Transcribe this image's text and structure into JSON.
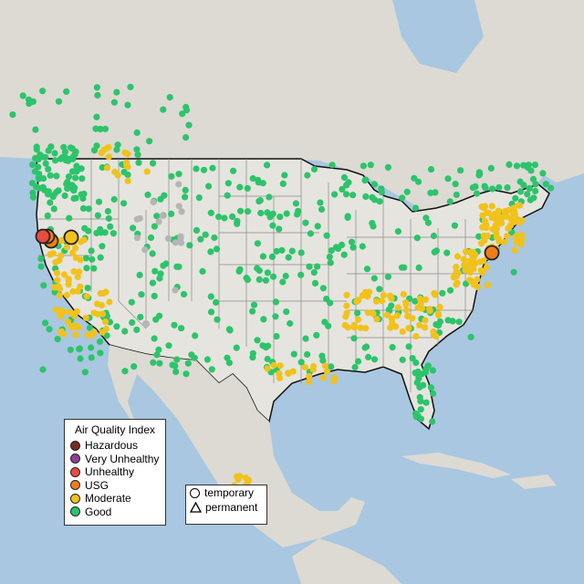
{
  "legend_aqi": {
    "title": "Air Quality Index",
    "items": [
      {
        "label": "Hazardous",
        "color": "#7e2b1f"
      },
      {
        "label": "Very Unhealthy",
        "color": "#8f3f97"
      },
      {
        "label": "Unhealthy",
        "color": "#e94b3c"
      },
      {
        "label": "USG",
        "color": "#ef7d16"
      },
      {
        "label": "Moderate",
        "color": "#f1c21b"
      },
      {
        "label": "Good",
        "color": "#2cc46b"
      }
    ]
  },
  "legend_type": {
    "items": [
      {
        "label": "temporary",
        "shape": "circle"
      },
      {
        "label": "permanent",
        "shape": "triangle"
      }
    ]
  },
  "colors": {
    "ocean": "#a9c7e0",
    "land": "#dcdad3",
    "us_land": "#e6e4de",
    "border": "#111111",
    "state_lines": "#8a8a8a",
    "good": "#2cc46b",
    "moderate": "#f1c21b",
    "usg": "#ef7d16",
    "unhealthy": "#e94b3c",
    "no_data": "#b5b5b5"
  }
}
